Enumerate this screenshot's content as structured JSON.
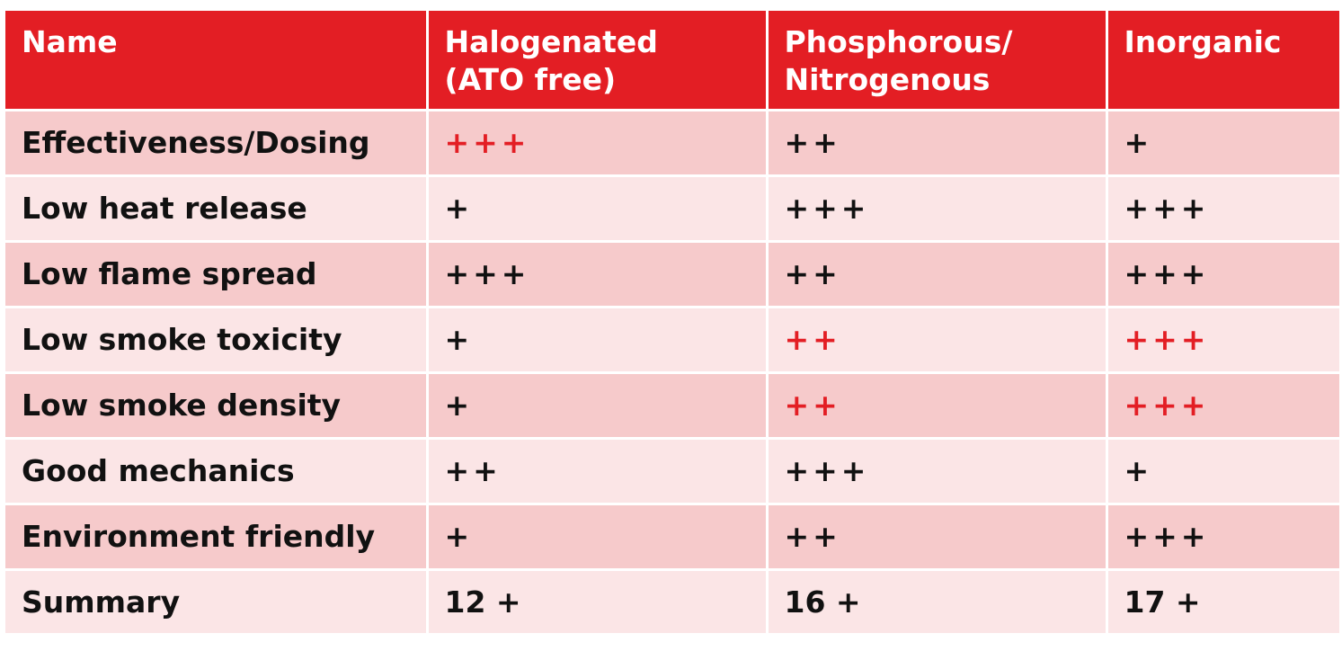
{
  "chart_data": {
    "type": "table",
    "title": "",
    "highlight_color": "#e31e24",
    "header_color": "#e31e24",
    "columns": [
      {
        "lines": [
          "Name"
        ]
      },
      {
        "lines": [
          "Halogenated",
          "(ATO free)"
        ]
      },
      {
        "lines": [
          "Phosphorous/",
          "Nitrogenous"
        ]
      },
      {
        "lines": [
          "Inorganic"
        ]
      }
    ],
    "rows": [
      {
        "name": "Effectiveness/Dosing",
        "scores": [
          "+++",
          "++",
          "+"
        ],
        "values": [
          3,
          2,
          1
        ],
        "highlighted": [
          true,
          false,
          false
        ]
      },
      {
        "name": "Low heat release",
        "scores": [
          "+",
          "+++",
          "+++"
        ],
        "values": [
          1,
          3,
          3
        ],
        "highlighted": [
          false,
          false,
          false
        ]
      },
      {
        "name": "Low flame spread",
        "scores": [
          "+++",
          "++",
          "+++"
        ],
        "values": [
          3,
          2,
          3
        ],
        "highlighted": [
          false,
          false,
          false
        ]
      },
      {
        "name": "Low smoke toxicity",
        "scores": [
          "+",
          "++",
          "+++"
        ],
        "values": [
          1,
          2,
          3
        ],
        "highlighted": [
          false,
          true,
          true
        ]
      },
      {
        "name": "Low smoke density",
        "scores": [
          "+",
          "++",
          "+++"
        ],
        "values": [
          1,
          2,
          3
        ],
        "highlighted": [
          false,
          true,
          true
        ]
      },
      {
        "name": "Good mechanics",
        "scores": [
          "++",
          "+++",
          "+"
        ],
        "values": [
          2,
          3,
          1
        ],
        "highlighted": [
          false,
          false,
          false
        ]
      },
      {
        "name": "Environment friendly",
        "scores": [
          "+",
          "++",
          "+++"
        ],
        "values": [
          1,
          2,
          3
        ],
        "highlighted": [
          false,
          false,
          false
        ]
      }
    ],
    "summary": {
      "name": "Summary",
      "scores": [
        "12 +",
        "16 +",
        "17 +"
      ],
      "values": [
        12,
        16,
        17
      ]
    }
  }
}
